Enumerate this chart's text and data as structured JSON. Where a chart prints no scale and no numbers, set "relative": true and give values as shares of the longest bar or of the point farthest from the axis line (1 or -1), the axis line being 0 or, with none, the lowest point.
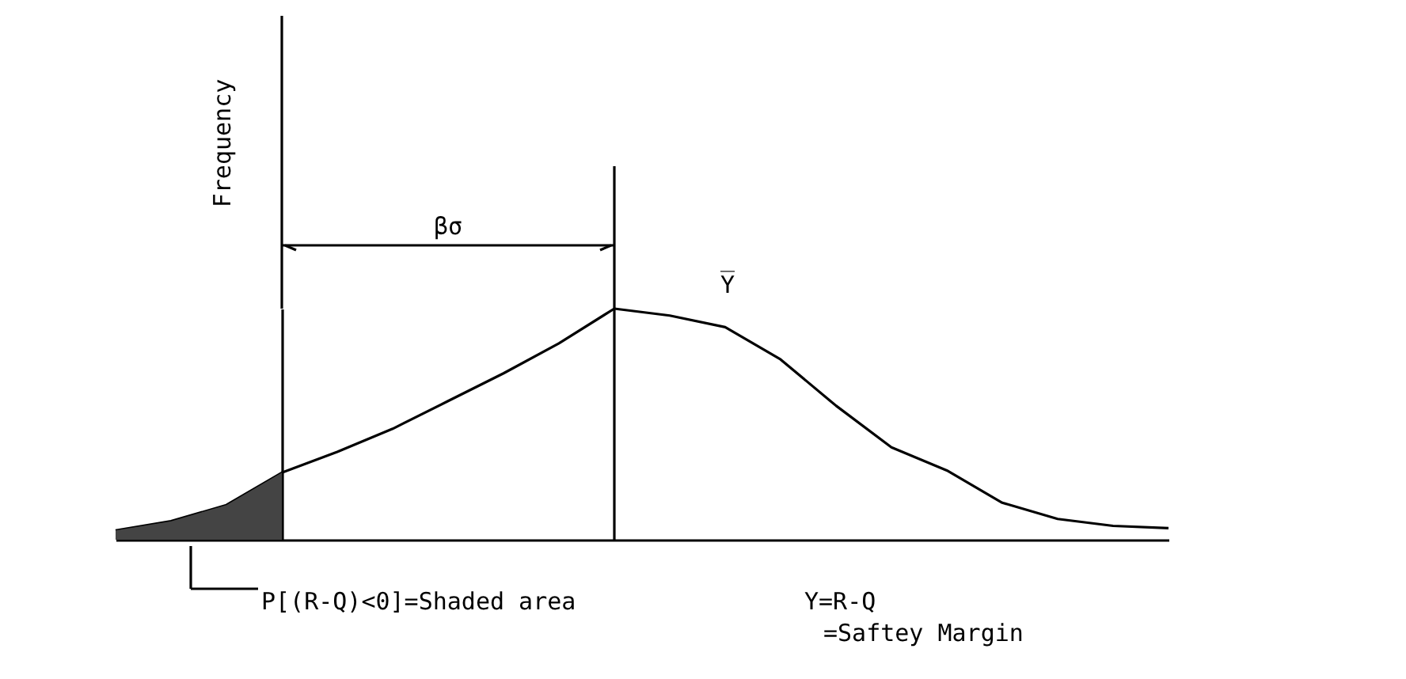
{
  "chart_data": {
    "type": "line",
    "relative": true,
    "ylabel": "Frequency",
    "marker": "none",
    "line_style": "solid",
    "categories": [
      null,
      null,
      null,
      null,
      null,
      null,
      null,
      null,
      null,
      null,
      null,
      null,
      null,
      null,
      null,
      null,
      null,
      null,
      null,
      null
    ],
    "annotations": [
      "βσ",
      "Y̅",
      "P[(R-Q)<0]=Shaded area",
      "Y=R-Q",
      "=Saftey Margin"
    ],
    "series": [
      {
        "color": "#000000",
        "values": [
          0.04,
          0.08,
          0.15,
          0.29,
          0.38,
          0.48,
          0.6,
          0.72,
          0.85,
          1.0,
          0.97,
          0.92,
          0.78,
          0.58,
          0.4,
          0.3,
          0.16,
          0.09,
          0.06,
          0.05
        ]
      },
      {
        "type": "area",
        "color": "#444444",
        "values": [
          0.04,
          0.08,
          0.15,
          0.29,
          null,
          null,
          null,
          null,
          null,
          null,
          null,
          null,
          null,
          null,
          null,
          null,
          null,
          null,
          null,
          null
        ]
      }
    ]
  }
}
